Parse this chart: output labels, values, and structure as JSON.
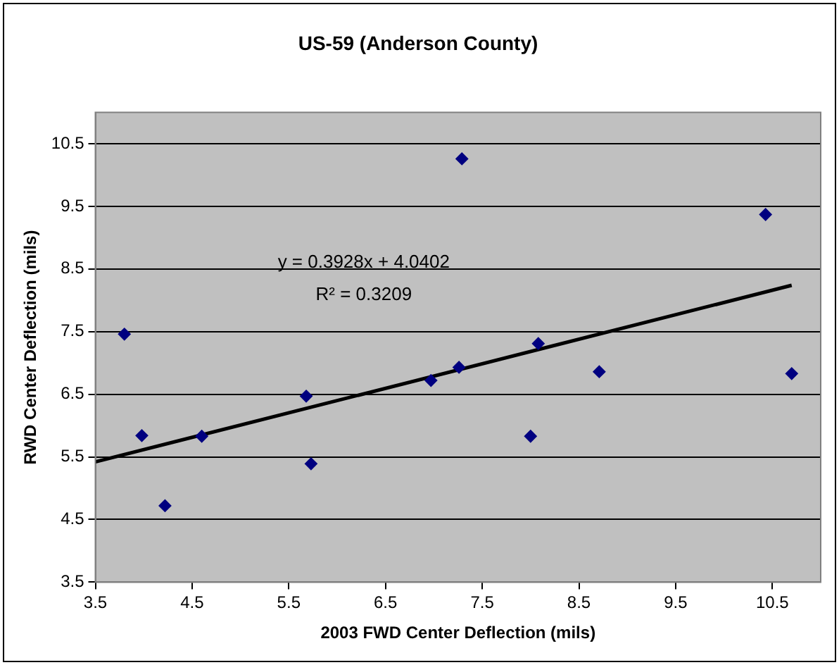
{
  "chart_data": {
    "type": "scatter",
    "title": "US-59 (Anderson County)",
    "xlabel": "2003 FWD Center Deflection (mils)",
    "ylabel": "RWD Center Deflection (mils)",
    "annotations": [
      "y = 0.3928x + 4.0402",
      "R² = 0.3209"
    ],
    "series": [
      {
        "color": "#000080",
        "marker": "diamond",
        "x": [
          3.8,
          3.98,
          4.22,
          4.6,
          5.68,
          5.73,
          6.97,
          7.29,
          7.26,
          8.08,
          8.0,
          8.71,
          10.43,
          10.7
        ],
        "values": [
          7.46,
          5.84,
          4.72,
          5.83,
          6.47,
          5.39,
          6.72,
          10.26,
          6.93,
          7.31,
          5.83,
          6.86,
          9.37,
          6.83
        ]
      },
      {
        "type": "line",
        "color": "#000000",
        "marker": "none",
        "x": [
          3.5,
          10.7
        ],
        "values": [
          5.42,
          8.24
        ]
      }
    ],
    "xlim": [
      3.5,
      11
    ],
    "xticks": [
      3.5,
      4.5,
      5.5,
      6.5,
      7.5,
      8.5,
      9.5,
      10.5
    ],
    "ylim": [
      3.5,
      11
    ],
    "yticks": [
      3.5,
      4.5,
      5.5,
      6.5,
      7.5,
      8.5,
      9.5,
      10.5
    ],
    "grid": "y",
    "legend": false
  }
}
